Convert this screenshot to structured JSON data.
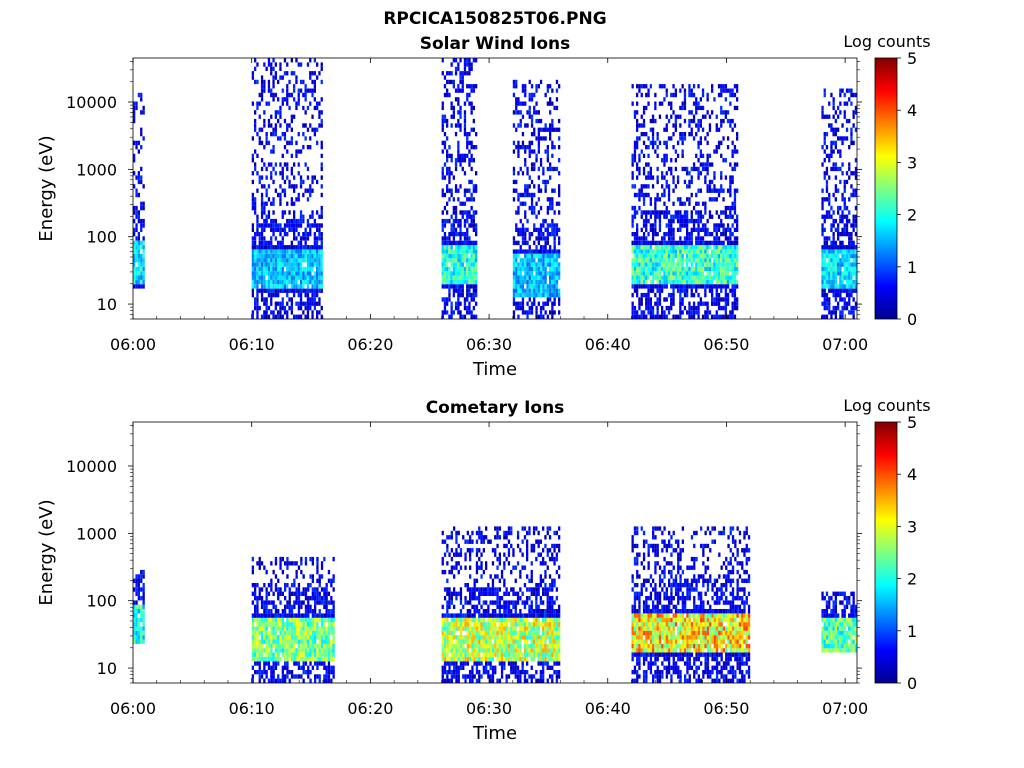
{
  "figure": {
    "filename": "RPCICA150825T06.PNG"
  },
  "chart_data": [
    {
      "type": "heatmap",
      "title": "Solar Wind Ions",
      "xlabel": "Time",
      "ylabel": "Energy (eV)",
      "x_ticks": [
        "06:00",
        "06:10",
        "06:20",
        "06:30",
        "06:40",
        "06:50",
        "07:00"
      ],
      "x_range": [
        "06:00",
        "07:01"
      ],
      "y_ticks": [
        "10",
        "100",
        "1000",
        "10000"
      ],
      "y_scale": "log",
      "y_range": [
        6,
        45000
      ],
      "colorbar": {
        "label": "Log counts",
        "ticks": [
          "0",
          "1",
          "2",
          "3",
          "4",
          "5"
        ],
        "range": [
          0,
          5
        ],
        "colormap": "jet"
      },
      "grid": false,
      "bursts": [
        {
          "start": "06:00",
          "end": "06:01",
          "energy_min": 18,
          "energy_max": 12000,
          "peak_energy": 38,
          "peak_log_counts": 2.2
        },
        {
          "start": "06:10",
          "end": "06:16",
          "energy_min": 6,
          "energy_max": 40000,
          "peak_energy": 30,
          "peak_log_counts": 2.0
        },
        {
          "start": "06:26",
          "end": "06:29",
          "energy_min": 6,
          "energy_max": 40000,
          "peak_energy": 35,
          "peak_log_counts": 2.6
        },
        {
          "start": "06:32",
          "end": "06:36",
          "energy_min": 6,
          "energy_max": 20000,
          "peak_energy": 25,
          "peak_log_counts": 2.0
        },
        {
          "start": "06:42",
          "end": "06:51",
          "energy_min": 6,
          "energy_max": 18000,
          "peak_energy": 35,
          "peak_log_counts": 2.7
        },
        {
          "start": "06:58",
          "end": "07:01",
          "energy_min": 6,
          "energy_max": 15000,
          "peak_energy": 30,
          "peak_log_counts": 2.2
        }
      ]
    },
    {
      "type": "heatmap",
      "title": "Cometary Ions",
      "xlabel": "Time",
      "ylabel": "Energy (eV)",
      "x_ticks": [
        "06:00",
        "06:10",
        "06:20",
        "06:30",
        "06:40",
        "06:50",
        "07:00"
      ],
      "x_range": [
        "06:00",
        "07:01"
      ],
      "y_ticks": [
        "10",
        "100",
        "1000",
        "10000"
      ],
      "y_scale": "log",
      "y_range": [
        6,
        45000
      ],
      "colorbar": {
        "label": "Log counts",
        "ticks": [
          "0",
          "1",
          "2",
          "3",
          "4",
          "5"
        ],
        "range": [
          0,
          5
        ],
        "colormap": "jet"
      },
      "grid": false,
      "bursts": [
        {
          "start": "06:00",
          "end": "06:01",
          "energy_min": 25,
          "energy_max": 250,
          "peak_energy": 38,
          "peak_log_counts": 2.5
        },
        {
          "start": "06:10",
          "end": "06:17",
          "energy_min": 6,
          "energy_max": 400,
          "peak_energy": 25,
          "peak_log_counts": 3.2
        },
        {
          "start": "06:26",
          "end": "06:36",
          "energy_min": 6,
          "energy_max": 1200,
          "peak_energy": 25,
          "peak_log_counts": 3.6
        },
        {
          "start": "06:42",
          "end": "06:52",
          "energy_min": 6,
          "energy_max": 1100,
          "peak_energy": 30,
          "peak_log_counts": 4.1
        },
        {
          "start": "06:58",
          "end": "07:01",
          "energy_min": 18,
          "energy_max": 130,
          "peak_energy": 25,
          "peak_log_counts": 3.0
        }
      ]
    }
  ]
}
